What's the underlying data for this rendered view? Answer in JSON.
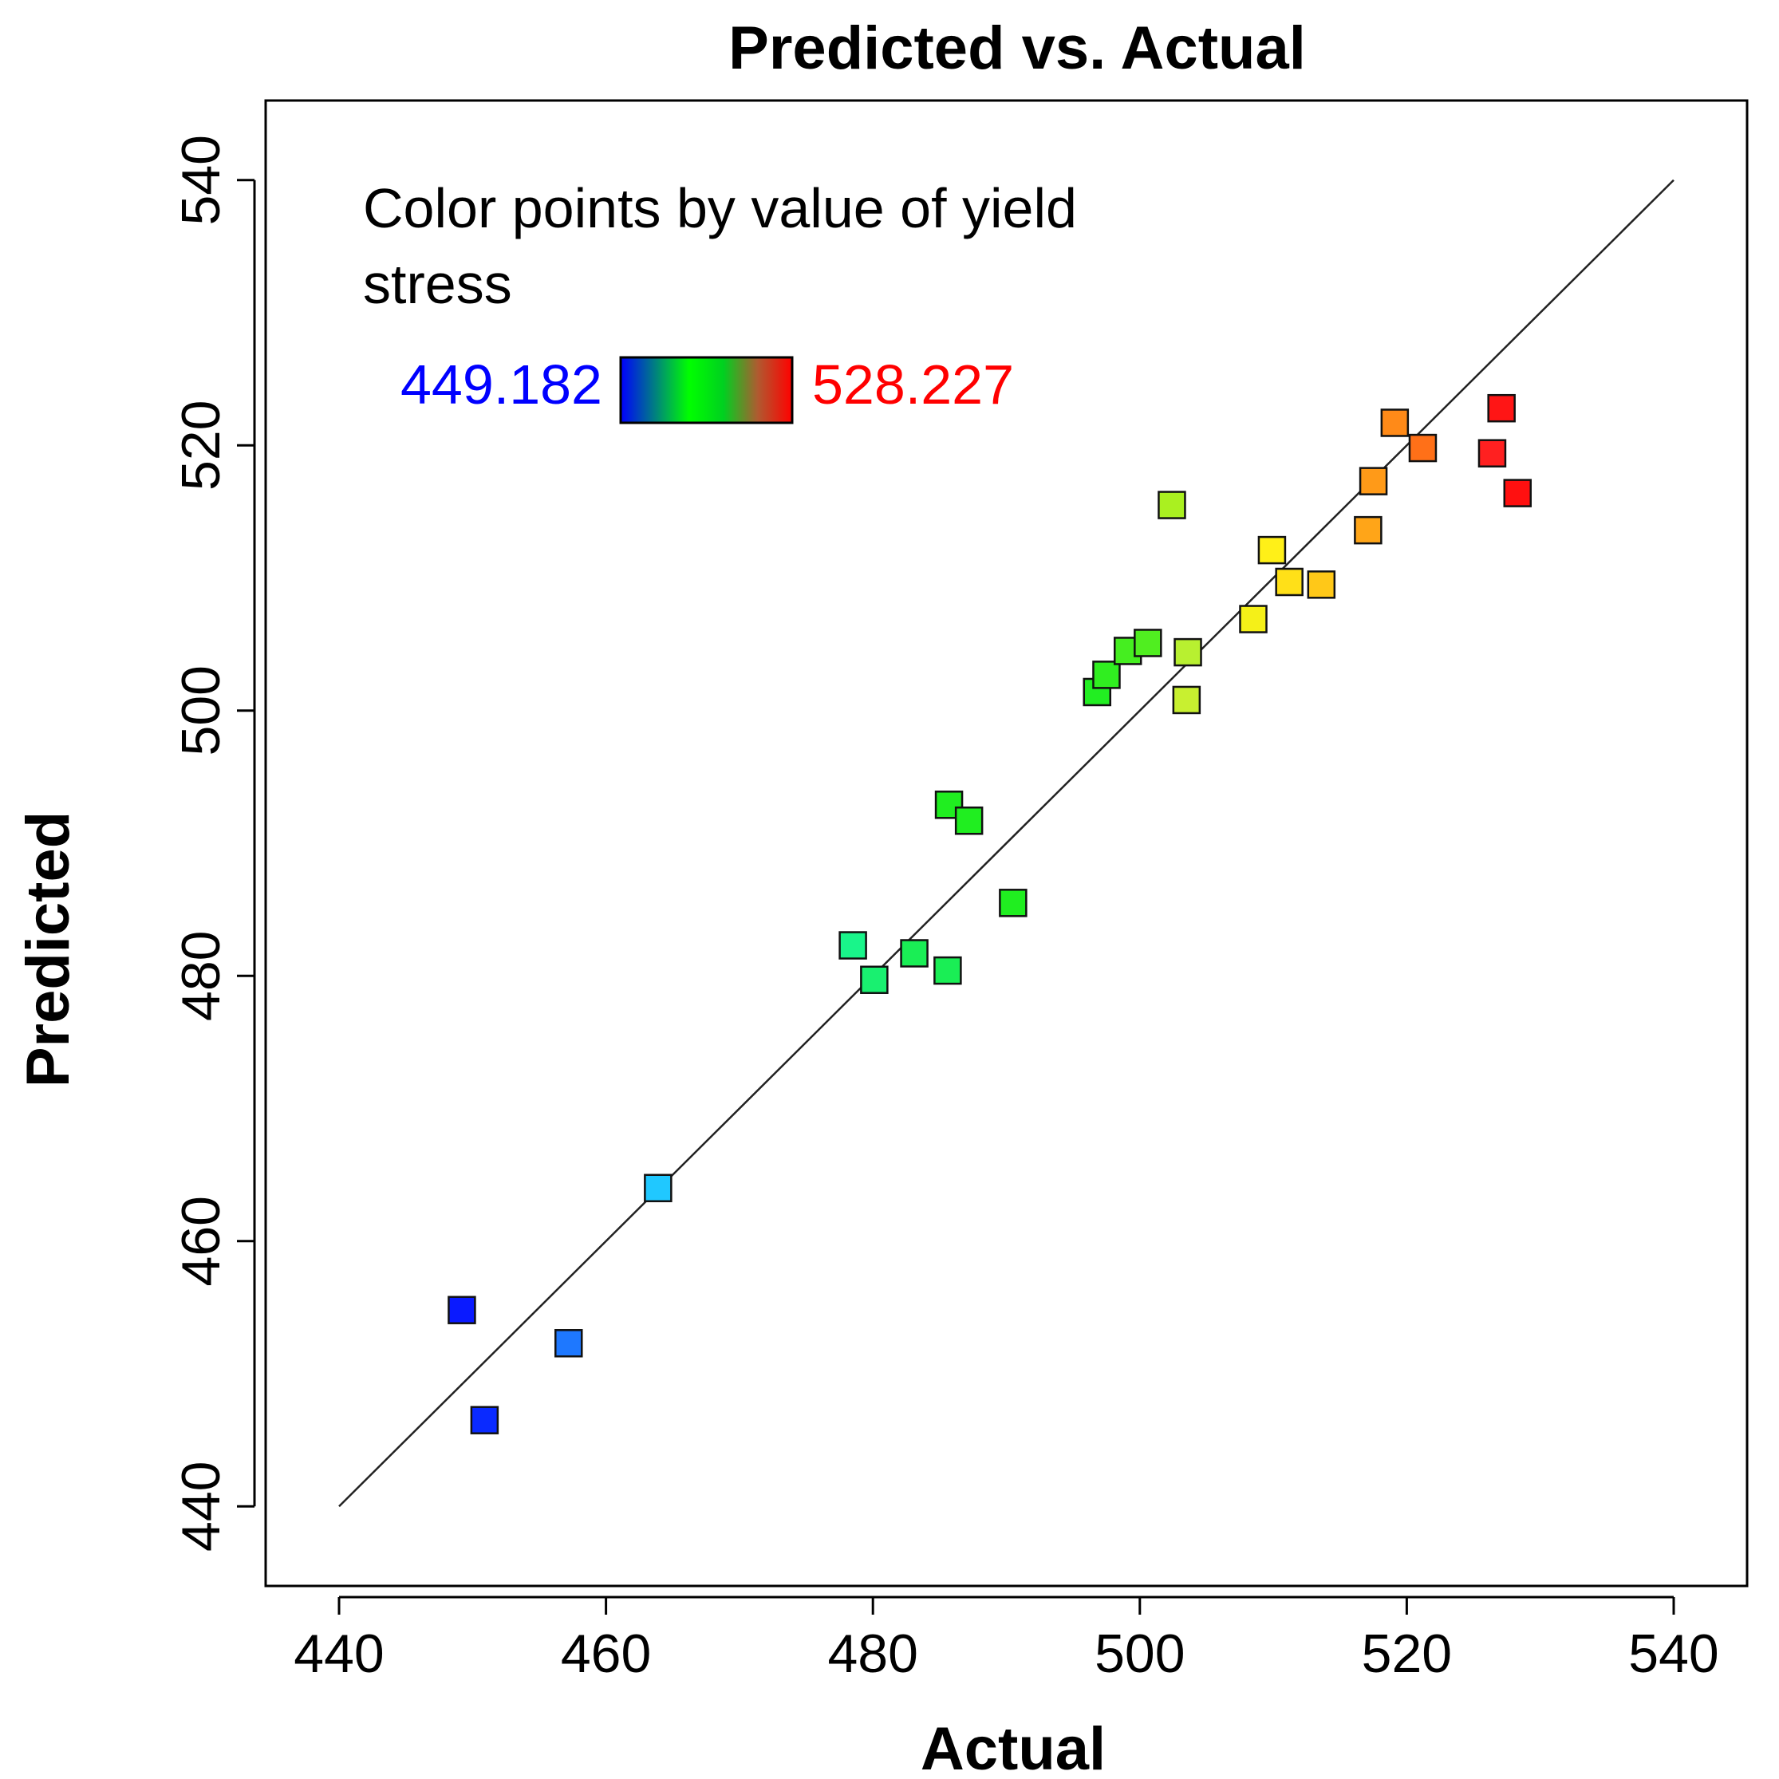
{
  "chart_data": {
    "type": "scatter",
    "title": "Predicted vs. Actual",
    "xlabel": "Actual",
    "ylabel": "Predicted",
    "xlim": [
      434.5,
      545.5
    ],
    "ylim": [
      434.0,
      546.0
    ],
    "xticks": [
      440,
      460,
      480,
      500,
      520,
      540
    ],
    "yticks": [
      440,
      460,
      480,
      500,
      520,
      540
    ],
    "xtick_labels": [
      "440",
      "460",
      "480",
      "500",
      "520",
      "540"
    ],
    "ytick_labels": [
      "440",
      "460",
      "480",
      "500",
      "520",
      "540"
    ],
    "reference_line": {
      "x": [
        440,
        540
      ],
      "y": [
        440,
        540
      ]
    },
    "legend": {
      "title_line1": "Color points by value of yield",
      "title_line2": "stress",
      "min_label": "449.182",
      "max_label": "528.227",
      "min_color": "#0000ff",
      "max_color": "#ff0000",
      "gradient": [
        "#0000ff",
        "#008080",
        "#00ff00",
        "#00d020",
        "#b05a30",
        "#ff0000"
      ]
    },
    "points": [
      {
        "x": 449.2,
        "y": 454.8,
        "color": "#0a1aff"
      },
      {
        "x": 450.9,
        "y": 446.5,
        "color": "#0a2aff"
      },
      {
        "x": 457.2,
        "y": 452.3,
        "color": "#1e78ff"
      },
      {
        "x": 463.9,
        "y": 464.0,
        "color": "#20c8ff"
      },
      {
        "x": 478.5,
        "y": 482.3,
        "color": "#19f58a"
      },
      {
        "x": 480.1,
        "y": 479.7,
        "color": "#19f070"
      },
      {
        "x": 483.1,
        "y": 481.7,
        "color": "#1aee55"
      },
      {
        "x": 485.6,
        "y": 480.4,
        "color": "#1aee55"
      },
      {
        "x": 485.7,
        "y": 492.9,
        "color": "#20ee20"
      },
      {
        "x": 487.2,
        "y": 491.7,
        "color": "#20ee20"
      },
      {
        "x": 490.5,
        "y": 485.5,
        "color": "#20ee20"
      },
      {
        "x": 496.8,
        "y": 501.4,
        "color": "#22ee22"
      },
      {
        "x": 497.5,
        "y": 502.7,
        "color": "#30ee20"
      },
      {
        "x": 499.1,
        "y": 504.5,
        "color": "#45ee20"
      },
      {
        "x": 500.6,
        "y": 505.1,
        "color": "#50ee20"
      },
      {
        "x": 502.4,
        "y": 515.5,
        "color": "#aaf020"
      },
      {
        "x": 503.5,
        "y": 500.8,
        "color": "#c8f030"
      },
      {
        "x": 503.6,
        "y": 504.4,
        "color": "#b8f030"
      },
      {
        "x": 508.5,
        "y": 506.9,
        "color": "#f5f018"
      },
      {
        "x": 509.9,
        "y": 512.1,
        "color": "#fff018"
      },
      {
        "x": 511.2,
        "y": 509.7,
        "color": "#ffe018"
      },
      {
        "x": 513.6,
        "y": 509.5,
        "color": "#ffc818"
      },
      {
        "x": 517.1,
        "y": 513.6,
        "color": "#ffa518"
      },
      {
        "x": 517.5,
        "y": 517.3,
        "color": "#ff9a18"
      },
      {
        "x": 519.1,
        "y": 521.7,
        "color": "#ff8a18"
      },
      {
        "x": 521.2,
        "y": 519.8,
        "color": "#ff7018"
      },
      {
        "x": 526.4,
        "y": 519.4,
        "color": "#ff2020"
      },
      {
        "x": 527.1,
        "y": 522.8,
        "color": "#ff1515"
      },
      {
        "x": 528.3,
        "y": 516.4,
        "color": "#ff1010"
      }
    ]
  }
}
